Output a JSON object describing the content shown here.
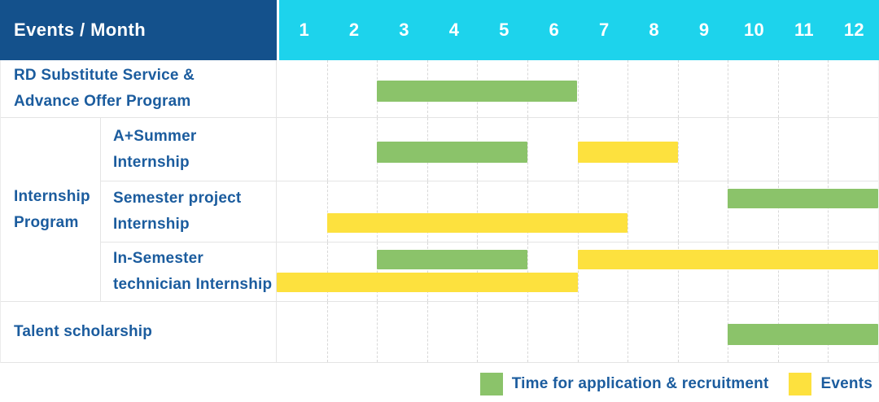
{
  "header": {
    "label": "Events / Month",
    "months": [
      "1",
      "2",
      "3",
      "4",
      "5",
      "6",
      "7",
      "8",
      "9",
      "10",
      "11",
      "12"
    ]
  },
  "colors": {
    "header_bg": "#14518c",
    "month_bg": "#1dd3ec",
    "text_blue": "#1b5c9e",
    "green": "#8bc36a",
    "yellow": "#fde13e",
    "grid_line": "#e4e4e4",
    "divider": "#d8d8d8"
  },
  "legend": {
    "items": [
      {
        "series": "application",
        "label": "Time for application & recruitment"
      },
      {
        "series": "event",
        "label": "Events"
      }
    ]
  },
  "chart_data": {
    "type": "gantt",
    "x_axis": {
      "label": "Month",
      "ticks": [
        1,
        2,
        3,
        4,
        5,
        6,
        7,
        8,
        9,
        10,
        11,
        12
      ],
      "range": [
        1,
        12
      ]
    },
    "series_meaning": {
      "application": "Time for application & recruitment (green)",
      "event": "Events (yellow)"
    },
    "group_label": "Internship Program",
    "group_label_lines": [
      "Internship",
      "Program"
    ],
    "rows": [
      {
        "label": "RD Substitute Service & Advance Offer Program",
        "label_lines": [
          "RD Substitute Service &",
          "Advance Offer Program"
        ],
        "group": null,
        "lanes": [
          [
            {
              "series": "application",
              "start_month": 3,
              "end_month": 6
            }
          ]
        ]
      },
      {
        "label": "A+Summer Internship",
        "label_lines": [
          "A+Summer",
          "Internship"
        ],
        "group": "Internship Program",
        "lanes": [
          [
            {
              "series": "application",
              "start_month": 3,
              "end_month": 5
            },
            {
              "series": "event",
              "start_month": 7,
              "end_month": 8
            }
          ]
        ]
      },
      {
        "label": "Semester project Internship",
        "label_lines": [
          "Semester project",
          "Internship"
        ],
        "group": "Internship Program",
        "lanes": [
          [
            {
              "series": "application",
              "start_month": 10,
              "end_month": 12
            }
          ],
          [
            {
              "series": "event",
              "start_month": 2,
              "end_month": 7
            }
          ]
        ]
      },
      {
        "label": "In-Semester technician Internship",
        "label_lines": [
          "In-Semester",
          "technician Internship"
        ],
        "group": "Internship Program",
        "lanes": [
          [
            {
              "series": "application",
              "start_month": 3,
              "end_month": 5
            },
            {
              "series": "event",
              "start_month": 7,
              "end_month": 12
            }
          ],
          [
            {
              "series": "event",
              "start_month": 1,
              "end_month": 6
            }
          ]
        ]
      },
      {
        "label": "Talent scholarship",
        "label_lines": [
          "Talent scholarship"
        ],
        "group": null,
        "lanes": [
          [
            {
              "series": "application",
              "start_month": 10,
              "end_month": 12
            }
          ]
        ]
      }
    ]
  }
}
